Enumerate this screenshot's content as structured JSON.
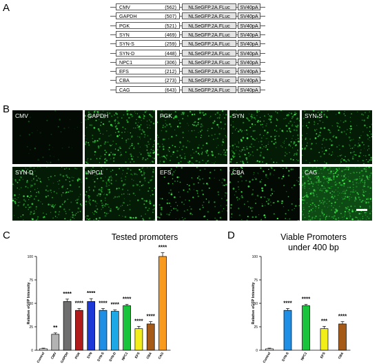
{
  "panels": {
    "a": "A",
    "b": "B",
    "c": "C",
    "d": "D"
  },
  "constructs": [
    {
      "promoter": "CMV",
      "size": "(562)",
      "gene": "NLSeGFP.2A.FLuc",
      "polyA": "SV40pA"
    },
    {
      "promoter": "GAPDH",
      "size": "(507)",
      "gene": "NLSeGFP.2A.FLuc",
      "polyA": "SV40pA"
    },
    {
      "promoter": "PGK",
      "size": "(521)",
      "gene": "NLSeGFP.2A.FLuc",
      "polyA": "SV40pA"
    },
    {
      "promoter": "SYN",
      "size": "(469)",
      "gene": "NLSeGFP.2A.FLuc",
      "polyA": "SV40pA"
    },
    {
      "promoter": "SYN-S",
      "size": "(259)",
      "gene": "NLSeGFP.2A.FLuc",
      "polyA": "SV40pA"
    },
    {
      "promoter": "SYN-D",
      "size": "(448)",
      "gene": "NLSeGFP.2A.FLuc",
      "polyA": "SV40pA"
    },
    {
      "promoter": "NPC1",
      "size": "(306)",
      "gene": "NLSeGFP.2A.FLuc",
      "polyA": "SV40pA"
    },
    {
      "promoter": "EFS",
      "size": "(212)",
      "gene": "NLSeGFP.2A.FLuc",
      "polyA": "SV40pA"
    },
    {
      "promoter": "CBA",
      "size": "(273)",
      "gene": "NLSeGFP.2A.FLuc",
      "polyA": "SV40pA"
    },
    {
      "promoter": "CAG",
      "size": "(643)",
      "gene": "NLSeGFP.2A.FLuc",
      "polyA": "SV40pA"
    }
  ],
  "micrographs": [
    {
      "label": "CMV",
      "intensity": 0.02
    },
    {
      "label": "GAPDH",
      "intensity": 0.55
    },
    {
      "label": "PGK",
      "intensity": 0.45
    },
    {
      "label": "SYN",
      "intensity": 0.55
    },
    {
      "label": "SYN-S",
      "intensity": 0.42
    },
    {
      "label": "SYN-D",
      "intensity": 0.45
    },
    {
      "label": "NPC1",
      "intensity": 0.5
    },
    {
      "label": "EFS",
      "intensity": 0.25
    },
    {
      "label": "CBA",
      "intensity": 0.28
    },
    {
      "label": "CAG",
      "intensity": 1.0
    }
  ],
  "colors": {
    "control": "#ffffff",
    "CMV": "#b3b3b3",
    "GAPDH": "#6e6e6e",
    "PGK": "#b01c1c",
    "SYN": "#1c38d6",
    "SYN-S": "#1f8fe6",
    "SYN-D": "#1fa8e6",
    "NPC1": "#19c43c",
    "EFS": "#f2ee19",
    "CBA": "#a55a18",
    "CAG": "#f79a1e"
  },
  "chart_data": [
    {
      "type": "bar",
      "title": "Tested promoters",
      "ylabel": "Relative eGFP Intensity",
      "ylim": [
        0,
        100
      ],
      "yticks": [
        "0",
        "25",
        "50",
        "75",
        "100"
      ],
      "categories": [
        "Control",
        "CMV",
        "GAPDH",
        "PGK",
        "SYN",
        "SYN-S",
        "SYN-D",
        "NPC1",
        "EFS",
        "CBA",
        "CAG"
      ],
      "values": [
        1.5,
        17,
        52,
        42.5,
        52,
        42.5,
        41.5,
        47.5,
        23,
        28,
        100
      ],
      "errors": [
        0.7,
        1.5,
        2.5,
        2,
        3,
        2,
        1.5,
        1.5,
        2.5,
        2.5,
        4
      ],
      "significance": [
        "",
        "**",
        "****",
        "****",
        "****",
        "****",
        "****",
        "****",
        "****",
        "****",
        "****"
      ]
    },
    {
      "type": "bar",
      "title": "Viable Promoters",
      "subtitle": "under 400 bp",
      "ylabel": "Relative eGFP Intensity",
      "ylim": [
        0,
        100
      ],
      "yticks": [
        "0",
        "25",
        "50",
        "75",
        "100"
      ],
      "categories": [
        "Control",
        "SYN-S",
        "NPC1",
        "EFS",
        "CBA"
      ],
      "values": [
        1.5,
        42.5,
        47.5,
        23,
        28
      ],
      "errors": [
        0.7,
        2,
        1.5,
        2.5,
        2.5
      ],
      "significance": [
        "",
        "****",
        "****",
        "***",
        "****"
      ]
    }
  ]
}
